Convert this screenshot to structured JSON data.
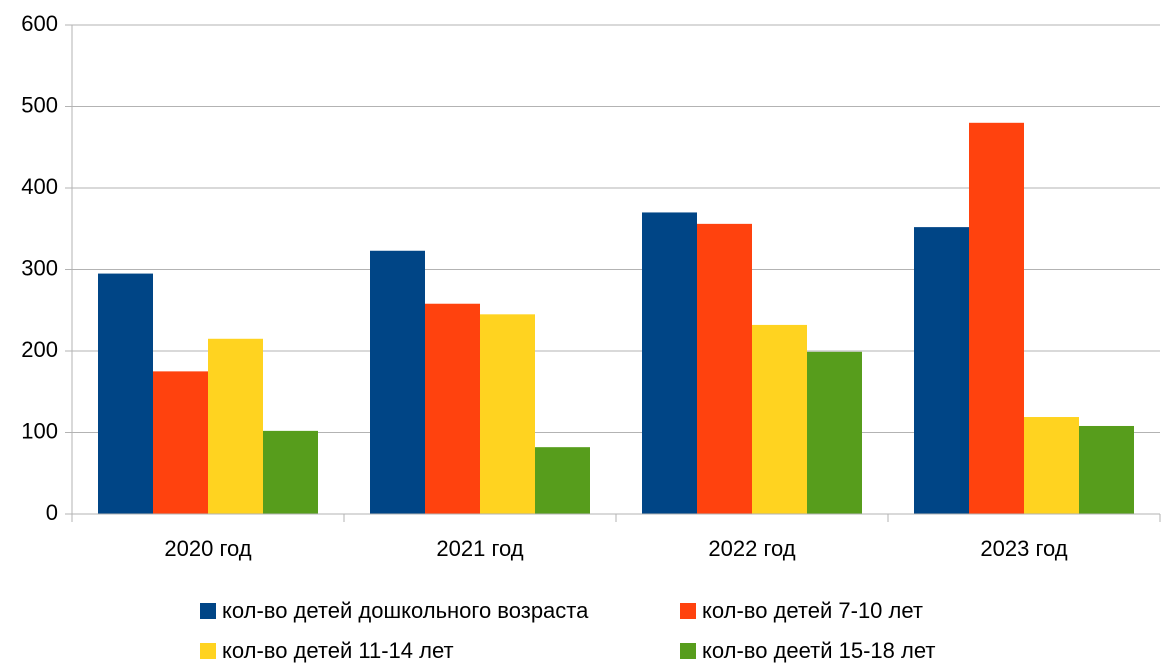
{
  "chart_data": {
    "type": "bar",
    "categories": [
      "2020 год",
      "2021 год",
      "2022 год",
      "2023 год"
    ],
    "series": [
      {
        "name": "кол-во детей дошкольного возраста",
        "color": "#004586",
        "values": [
          295,
          323,
          370,
          352
        ]
      },
      {
        "name": "кол-во детей 7-10 лет",
        "color": "#ff420e",
        "values": [
          175,
          258,
          356,
          480
        ]
      },
      {
        "name": "кол-во детей 11-14 лет",
        "color": "#ffd320",
        "values": [
          215,
          245,
          232,
          119
        ]
      },
      {
        "name": "кол-во деетй 15-18 лет",
        "color": "#579d1c",
        "values": [
          102,
          82,
          199,
          108
        ]
      }
    ],
    "ylim": [
      0,
      600
    ],
    "yticks": [
      0,
      100,
      200,
      300,
      400,
      500,
      600
    ],
    "grid": true,
    "legend": "bottom"
  }
}
